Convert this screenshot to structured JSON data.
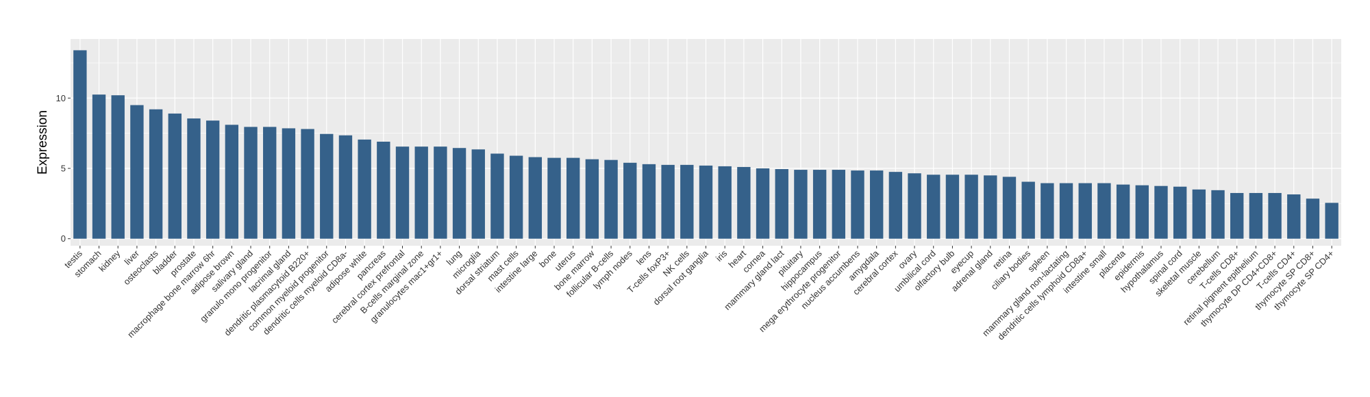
{
  "chart_data": {
    "type": "bar",
    "title": "",
    "xlabel": "",
    "ylabel": "Expression",
    "ylim": [
      -0.5,
      14.2
    ],
    "yticks": [
      0,
      5,
      10
    ],
    "grid": true,
    "bar_color": "#35618a",
    "panel_color": "#ebebeb",
    "grid_color": "#ffffff",
    "categories": [
      "testis",
      "stomach",
      "kidney",
      "liver",
      "osteoclasts",
      "bladder",
      "prostate",
      "macrophage bone marrow 6hr",
      "adipose brown",
      "salivary gland",
      "granulo mono progenitor",
      "lacrimal gland",
      "dendritic plasmacytoid B220+",
      "common myeloid progenitor",
      "dendritic cells myeloid CD8a-",
      "adipose white",
      "pancreas",
      "cerebral cortex prefrontal",
      "B-cells marginal zone",
      "granulocytes mac1+gr1+",
      "lung",
      "microglia",
      "dorsal striatum",
      "mast cells",
      "intestine large",
      "bone",
      "uterus",
      "bone marrow",
      "follicular B-cells",
      "lymph nodes",
      "lens",
      "T-cells foxP3+",
      "NK cells",
      "dorsal root ganglia",
      "iris",
      "heart",
      "cornea",
      "mammary gland lact",
      "pituitary",
      "hippocampus",
      "mega erythrocyte progenitor",
      "nucleus accumbens",
      "amygdala",
      "cerebral cortex",
      "ovary",
      "umbilical cord",
      "olfactory bulb",
      "eyecup",
      "adrenal gland",
      "retina",
      "ciliary bodies",
      "spleen",
      "mammary gland non-lactating",
      "dendritic cells lymphoid CD8a+",
      "intestine small",
      "placenta",
      "epidermis",
      "hypothalamus",
      "spinal cord",
      "skeletal muscle",
      "cerebellum",
      "T-cells CD8+",
      "retinal pigment epithelium",
      "thymocyte DP CD4+CD8+",
      "T-cells CD4+",
      "thymocyte SP CD8+",
      "thymocyte SP CD4+"
    ],
    "values": [
      13.4,
      10.25,
      10.2,
      9.5,
      9.2,
      8.9,
      8.55,
      8.4,
      8.1,
      7.95,
      7.95,
      7.85,
      7.8,
      7.45,
      7.35,
      7.05,
      6.9,
      6.55,
      6.55,
      6.55,
      6.45,
      6.35,
      6.05,
      5.9,
      5.8,
      5.75,
      5.75,
      5.65,
      5.6,
      5.4,
      5.3,
      5.25,
      5.25,
      5.2,
      5.15,
      5.1,
      5.0,
      4.95,
      4.9,
      4.9,
      4.9,
      4.85,
      4.85,
      4.75,
      4.65,
      4.55,
      4.55,
      4.55,
      4.5,
      4.4,
      4.05,
      3.95,
      3.95,
      3.95,
      3.95,
      3.85,
      3.8,
      3.75,
      3.7,
      3.5,
      3.45,
      3.25,
      3.25,
      3.25,
      3.15,
      2.85,
      2.55
    ]
  }
}
